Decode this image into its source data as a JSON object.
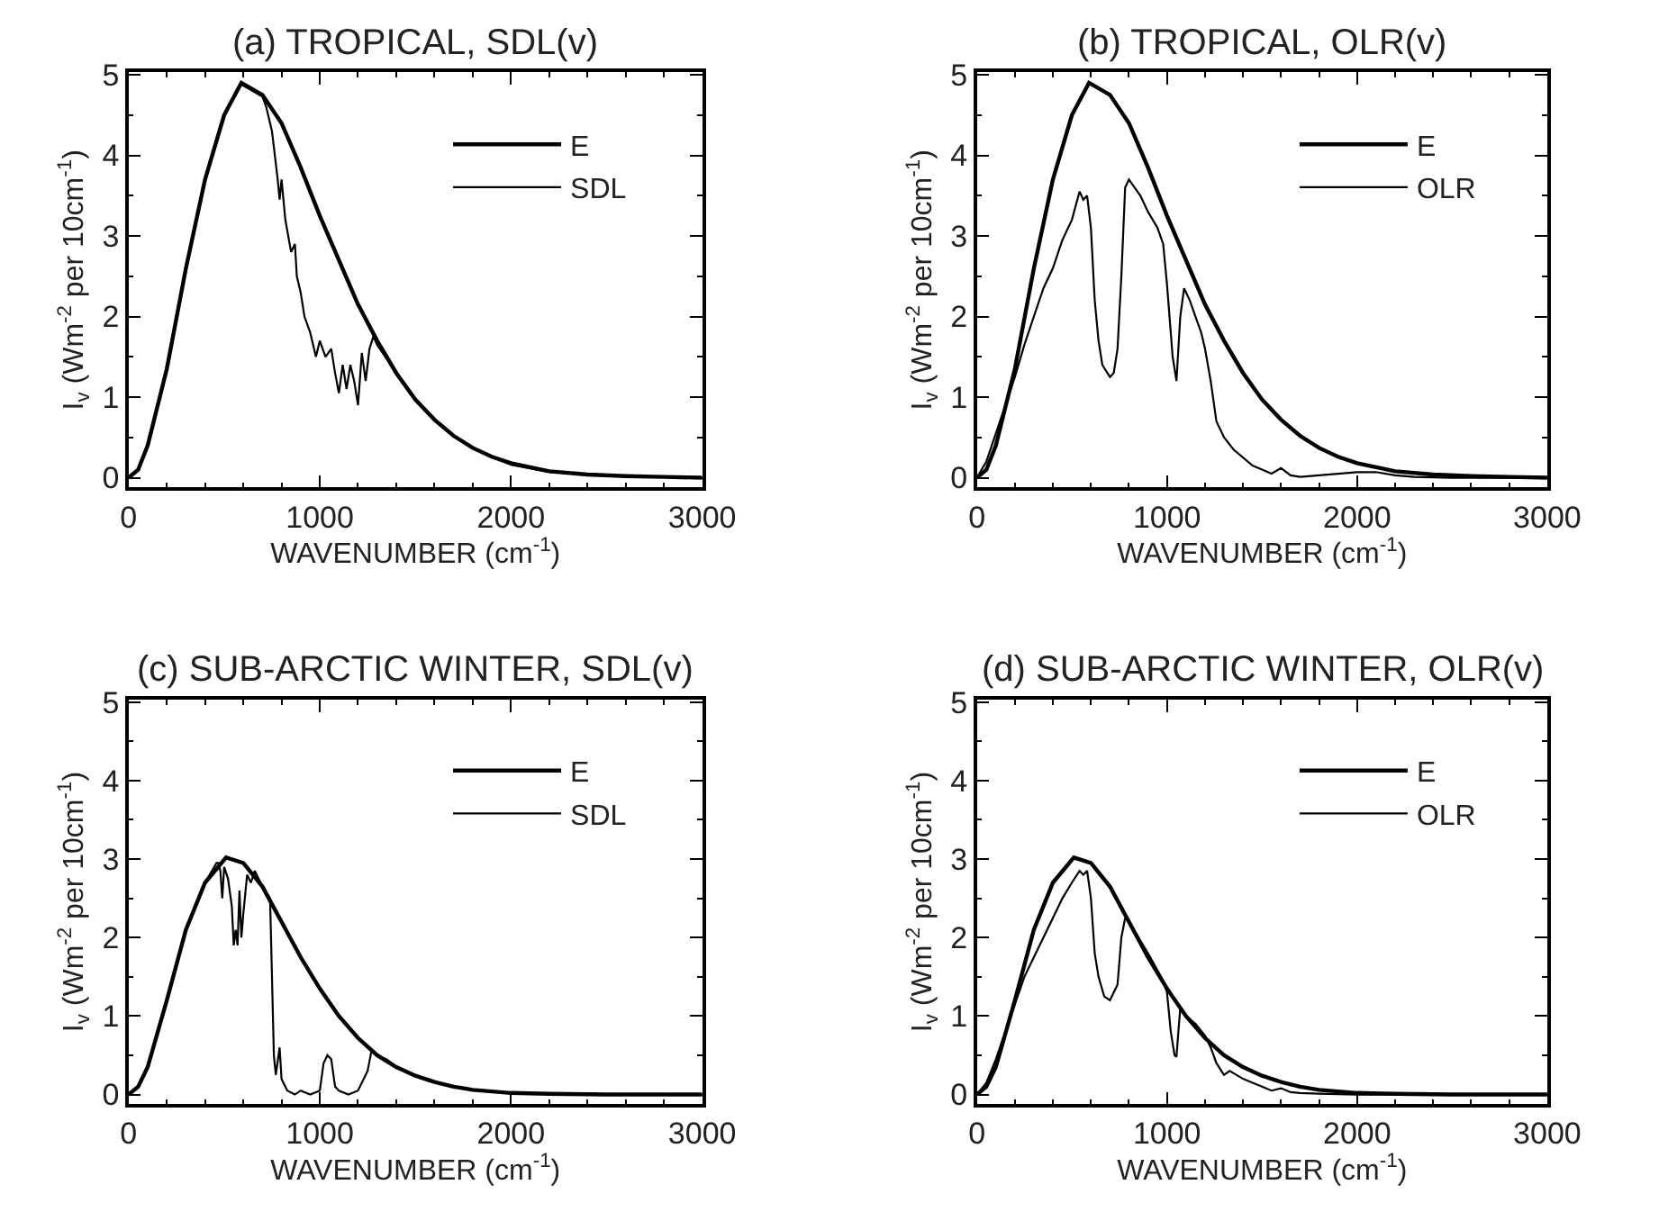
{
  "chart_data": [
    {
      "type": "line",
      "title": "(a) TROPICAL, SDL(v)",
      "xlabel": "WAVENUMBER (cm$^{-1}$)",
      "ylabel": "I$_{v}$ (Wm$^{-2}$ per 10cm$^{-1}$)",
      "xlim": [
        0,
        3000
      ],
      "ylim": [
        -0.12,
        5.03
      ],
      "xticks": [
        0,
        1000,
        2000,
        3000
      ],
      "yticks": [
        0,
        1,
        2,
        3,
        4,
        5
      ],
      "legend": "top right",
      "series": [
        {
          "name": "E",
          "color": "#000000",
          "x": [
            0,
            50,
            100,
            200,
            300,
            400,
            500,
            590,
            700,
            800,
            900,
            1000,
            1100,
            1200,
            1300,
            1400,
            1500,
            1600,
            1700,
            1800,
            1900,
            2000,
            2200,
            2400,
            2600,
            2800,
            3000
          ],
          "values": [
            0,
            0.1,
            0.4,
            1.35,
            2.6,
            3.7,
            4.5,
            4.9,
            4.75,
            4.4,
            3.85,
            3.25,
            2.7,
            2.15,
            1.7,
            1.3,
            0.97,
            0.72,
            0.52,
            0.37,
            0.26,
            0.18,
            0.08,
            0.04,
            0.02,
            0.01,
            0
          ]
        },
        {
          "name": "SDL",
          "color": "#000000",
          "x": [
            0,
            50,
            100,
            200,
            300,
            400,
            500,
            590,
            700,
            720,
            750,
            780,
            790,
            800,
            820,
            850,
            870,
            880,
            900,
            920,
            950,
            980,
            1000,
            1030,
            1060,
            1080,
            1100,
            1120,
            1140,
            1160,
            1180,
            1200,
            1220,
            1240,
            1260,
            1280,
            1300,
            1400,
            1500,
            1600,
            1700,
            1800,
            1900,
            2000,
            2200,
            2400,
            2600,
            2800,
            3000
          ],
          "values": [
            0,
            0.1,
            0.4,
            1.35,
            2.6,
            3.7,
            4.5,
            4.88,
            4.73,
            4.6,
            4.3,
            3.7,
            3.45,
            3.7,
            3.2,
            2.8,
            2.9,
            2.5,
            2.3,
            2.0,
            1.8,
            1.5,
            1.7,
            1.5,
            1.6,
            1.3,
            1.05,
            1.4,
            1.1,
            1.4,
            1.2,
            0.9,
            1.55,
            1.2,
            1.6,
            1.75,
            1.65,
            1.3,
            0.97,
            0.72,
            0.52,
            0.37,
            0.26,
            0.16,
            0.07,
            0.04,
            0.02,
            0.01,
            0
          ]
        }
      ]
    },
    {
      "type": "line",
      "title": "(b) TROPICAL, OLR(v)",
      "xlabel": "WAVENUMBER (cm$^{-1}$)",
      "ylabel": "I$_{v}$ (Wm$^{-2}$ per 10cm$^{-1}$)",
      "xlim": [
        0,
        3000
      ],
      "ylim": [
        -0.12,
        5.03
      ],
      "xticks": [
        0,
        1000,
        2000,
        3000
      ],
      "yticks": [
        0,
        1,
        2,
        3,
        4,
        5
      ],
      "legend": "top right",
      "series": [
        {
          "name": "E",
          "color": "#000000",
          "x": [
            0,
            50,
            100,
            200,
            300,
            400,
            500,
            590,
            700,
            800,
            900,
            1000,
            1100,
            1200,
            1300,
            1400,
            1500,
            1600,
            1700,
            1800,
            1900,
            2000,
            2200,
            2400,
            2600,
            2800,
            3000
          ],
          "values": [
            0,
            0.1,
            0.4,
            1.35,
            2.6,
            3.7,
            4.5,
            4.9,
            4.75,
            4.4,
            3.85,
            3.25,
            2.7,
            2.15,
            1.7,
            1.3,
            0.97,
            0.72,
            0.52,
            0.37,
            0.26,
            0.18,
            0.08,
            0.04,
            0.02,
            0.01,
            0
          ]
        },
        {
          "name": "OLR",
          "color": "#000000",
          "x": [
            0,
            50,
            100,
            150,
            200,
            250,
            300,
            350,
            400,
            450,
            500,
            540,
            560,
            580,
            600,
            620,
            640,
            660,
            700,
            720,
            740,
            760,
            780,
            800,
            830,
            860,
            900,
            950,
            980,
            1000,
            1030,
            1050,
            1070,
            1090,
            1120,
            1150,
            1180,
            1200,
            1230,
            1260,
            1300,
            1350,
            1400,
            1450,
            1500,
            1550,
            1600,
            1650,
            1700,
            1800,
            1900,
            2000,
            2100,
            2200,
            2300,
            2500,
            3000
          ],
          "values": [
            0,
            0.2,
            0.55,
            0.9,
            1.25,
            1.65,
            2.0,
            2.35,
            2.6,
            2.95,
            3.2,
            3.55,
            3.45,
            3.5,
            3.1,
            2.2,
            1.7,
            1.4,
            1.25,
            1.3,
            1.6,
            2.5,
            3.6,
            3.7,
            3.6,
            3.5,
            3.3,
            3.1,
            2.9,
            2.4,
            1.5,
            1.2,
            2.0,
            2.35,
            2.2,
            2.0,
            1.8,
            1.6,
            1.2,
            0.7,
            0.5,
            0.35,
            0.25,
            0.15,
            0.1,
            0.05,
            0.12,
            0.03,
            0.01,
            0.03,
            0.05,
            0.07,
            0.07,
            0.03,
            0.01,
            0,
            0
          ]
        }
      ]
    },
    {
      "type": "line",
      "title": "(c) SUB-ARCTIC WINTER, SDL(v)",
      "xlabel": "WAVENUMBER (cm$^{-1}$)",
      "ylabel": "I$_{v}$ (Wm$^{-2}$ per 10cm$^{-1}$)",
      "xlim": [
        0,
        3000
      ],
      "ylim": [
        -0.12,
        5.03
      ],
      "xticks": [
        0,
        1000,
        2000,
        3000
      ],
      "yticks": [
        0,
        1,
        2,
        3,
        4,
        5
      ],
      "legend": "top right",
      "series": [
        {
          "name": "E",
          "color": "#000000",
          "x": [
            0,
            50,
            100,
            200,
            300,
            400,
            510,
            600,
            700,
            800,
            900,
            1000,
            1100,
            1200,
            1300,
            1400,
            1500,
            1600,
            1700,
            1800,
            2000,
            2200,
            2500,
            3000
          ],
          "values": [
            0,
            0.1,
            0.35,
            1.2,
            2.1,
            2.7,
            3.02,
            2.95,
            2.65,
            2.2,
            1.75,
            1.35,
            1.0,
            0.72,
            0.5,
            0.35,
            0.24,
            0.16,
            0.1,
            0.06,
            0.02,
            0.01,
            0,
            0
          ]
        },
        {
          "name": "SDL",
          "color": "#000000",
          "x": [
            0,
            50,
            100,
            200,
            300,
            400,
            460,
            470,
            480,
            490,
            500,
            520,
            540,
            550,
            560,
            570,
            580,
            590,
            600,
            620,
            640,
            660,
            700,
            740,
            750,
            760,
            770,
            790,
            800,
            830,
            870,
            900,
            950,
            1000,
            1020,
            1040,
            1060,
            1080,
            1100,
            1150,
            1200,
            1230,
            1250,
            1270,
            1300,
            1350,
            1400,
            1500,
            1600,
            1700,
            1800,
            2000,
            2200,
            2500,
            3000
          ],
          "values": [
            0,
            0.1,
            0.35,
            1.2,
            2.1,
            2.7,
            2.95,
            2.95,
            2.85,
            2.5,
            2.9,
            2.75,
            2.4,
            1.9,
            2.1,
            1.9,
            2.6,
            2.0,
            2.3,
            2.8,
            2.7,
            2.85,
            2.65,
            2.5,
            1.5,
            0.5,
            0.25,
            0.6,
            0.2,
            0.05,
            0,
            0.05,
            0,
            0.05,
            0.4,
            0.5,
            0.45,
            0.1,
            0.05,
            0,
            0.05,
            0.2,
            0.3,
            0.55,
            0.5,
            0.45,
            0.35,
            0.24,
            0.16,
            0.1,
            0.06,
            0.02,
            0.01,
            0,
            0
          ]
        }
      ]
    },
    {
      "type": "line",
      "title": "(d) SUB-ARCTIC WINTER, OLR(v)",
      "xlabel": "WAVENUMBER (cm$^{-1}$)",
      "ylabel": "I$_{v}$ (Wm$^{-2}$ per 10cm$^{-1}$)",
      "xlim": [
        0,
        3000
      ],
      "ylim": [
        -0.12,
        5.03
      ],
      "xticks": [
        0,
        1000,
        2000,
        3000
      ],
      "yticks": [
        0,
        1,
        2,
        3,
        4,
        5
      ],
      "legend": "top right",
      "series": [
        {
          "name": "E",
          "color": "#000000",
          "x": [
            0,
            50,
            100,
            200,
            300,
            400,
            510,
            600,
            700,
            800,
            900,
            1000,
            1100,
            1200,
            1300,
            1400,
            1500,
            1600,
            1700,
            1800,
            2000,
            2200,
            2500,
            3000
          ],
          "values": [
            0,
            0.1,
            0.35,
            1.2,
            2.1,
            2.7,
            3.02,
            2.95,
            2.65,
            2.2,
            1.75,
            1.35,
            1.0,
            0.72,
            0.5,
            0.35,
            0.24,
            0.16,
            0.1,
            0.06,
            0.02,
            0.01,
            0,
            0
          ]
        },
        {
          "name": "OLR",
          "color": "#000000",
          "x": [
            0,
            50,
            100,
            150,
            200,
            250,
            300,
            350,
            400,
            450,
            500,
            540,
            560,
            580,
            600,
            620,
            640,
            670,
            700,
            720,
            740,
            760,
            780,
            800,
            900,
            980,
            1000,
            1020,
            1040,
            1050,
            1060,
            1070,
            1100,
            1150,
            1200,
            1230,
            1260,
            1300,
            1330,
            1400,
            1450,
            1500,
            1550,
            1600,
            1650,
            1700,
            1800,
            2000,
            3000
          ],
          "values": [
            0,
            0.15,
            0.45,
            0.8,
            1.15,
            1.5,
            1.75,
            2.0,
            2.25,
            2.5,
            2.7,
            2.85,
            2.8,
            2.85,
            2.5,
            1.8,
            1.5,
            1.25,
            1.2,
            1.3,
            1.4,
            2.0,
            2.25,
            2.2,
            1.8,
            1.45,
            1.3,
            0.8,
            0.5,
            0.48,
            0.8,
            1.1,
            1.0,
            0.9,
            0.75,
            0.6,
            0.4,
            0.25,
            0.3,
            0.2,
            0.15,
            0.1,
            0.05,
            0.08,
            0.03,
            0.02,
            0.01,
            0,
            0
          ]
        }
      ]
    }
  ]
}
